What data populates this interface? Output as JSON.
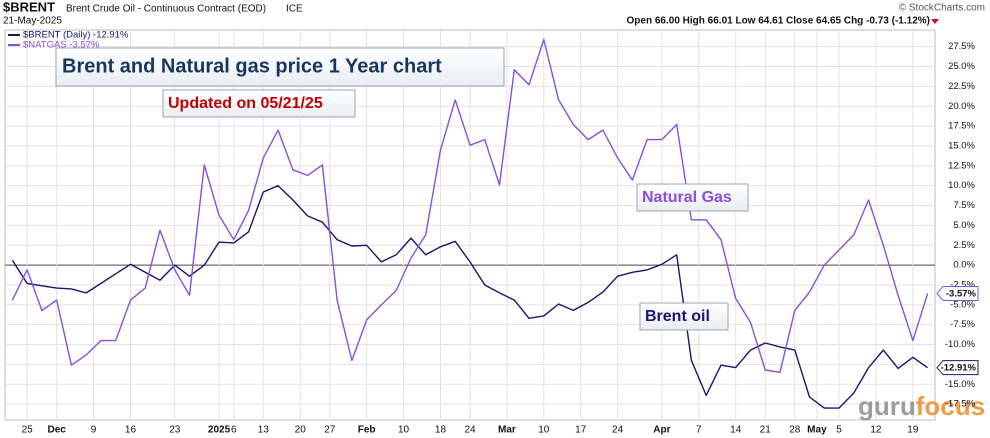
{
  "header": {
    "symbol": "$BRENT",
    "description": "Brent Crude Oil - Continuous Contract (EOD)",
    "exchange": "ICE",
    "date": "21-May-2025",
    "quote": "Open 66.00  High 66.01  Low 64.61  Close 64.65  Chg -0.73 (-1.12%)",
    "credit": "© StockCharts.com"
  },
  "logo": "gurufocus",
  "chart_data": {
    "type": "line",
    "annotations": {
      "title": "Brent and Natural gas price 1 Year chart",
      "updated": "Updated on 05/21/25",
      "gas": "Natural Gas",
      "oil": "Brent oil"
    },
    "x": [
      1,
      3,
      5,
      7,
      9,
      11,
      13,
      15,
      17,
      19,
      21,
      23,
      25,
      27,
      29,
      31,
      33,
      35,
      37,
      39,
      41,
      43,
      45,
      47,
      49,
      51,
      53,
      55,
      57,
      59,
      61,
      63,
      65,
      67,
      69,
      71,
      73,
      75,
      77,
      79,
      81,
      83,
      85,
      87,
      89,
      91,
      93,
      95,
      97,
      99,
      101,
      103,
      105,
      107,
      109,
      111,
      113,
      115,
      117,
      119,
      121,
      123,
      125
    ],
    "xlim": [
      0,
      126
    ],
    "xticks": [
      {
        "value": 3,
        "label": "25"
      },
      {
        "value": 7,
        "label": "Dec"
      },
      {
        "value": 12,
        "label": "9"
      },
      {
        "value": 17,
        "label": "16"
      },
      {
        "value": 23,
        "label": "23"
      },
      {
        "value": 29,
        "label": "2025"
      },
      {
        "value": 31,
        "label": "6"
      },
      {
        "value": 35,
        "label": "13"
      },
      {
        "value": 40,
        "label": "20"
      },
      {
        "value": 44,
        "label": "27"
      },
      {
        "value": 49,
        "label": "Feb"
      },
      {
        "value": 54,
        "label": "10"
      },
      {
        "value": 59,
        "label": "18"
      },
      {
        "value": 63,
        "label": "24"
      },
      {
        "value": 68,
        "label": "Mar"
      },
      {
        "value": 73,
        "label": "10"
      },
      {
        "value": 78,
        "label": "17"
      },
      {
        "value": 83,
        "label": "24"
      },
      {
        "value": 89,
        "label": "Apr"
      },
      {
        "value": 94,
        "label": "7"
      },
      {
        "value": 99,
        "label": "14"
      },
      {
        "value": 103,
        "label": "21"
      },
      {
        "value": 107,
        "label": "28"
      },
      {
        "value": 110,
        "label": "May"
      },
      {
        "value": 113,
        "label": "5"
      },
      {
        "value": 118,
        "label": "12"
      },
      {
        "value": 123,
        "label": "19"
      }
    ],
    "ylim": [
      -19.5,
      29.6
    ],
    "yticks": [
      {
        "value": 27.5,
        "label": "27.5%"
      },
      {
        "value": 25,
        "label": "25.0%"
      },
      {
        "value": 22.5,
        "label": "22.5%"
      },
      {
        "value": 20,
        "label": "20.0%"
      },
      {
        "value": 17.5,
        "label": "17.5%"
      },
      {
        "value": 15,
        "label": "15.0%"
      },
      {
        "value": 12.5,
        "label": "12.5%"
      },
      {
        "value": 10,
        "label": "10.0%"
      },
      {
        "value": 7.5,
        "label": "7.5%"
      },
      {
        "value": 5,
        "label": "5.0%"
      },
      {
        "value": 2.5,
        "label": "2.5%"
      },
      {
        "value": 0,
        "label": "0.0%"
      },
      {
        "value": -2.5,
        "label": "-2.5%"
      },
      {
        "value": -5,
        "label": "-5.0%"
      },
      {
        "value": -7.5,
        "label": "-7.5%"
      },
      {
        "value": -10,
        "label": "-10.0%"
      },
      {
        "value": -12.5,
        "label": "-12.5%"
      },
      {
        "value": -15,
        "label": "-15.0%"
      },
      {
        "value": -17.5,
        "label": "-17.5%"
      }
    ],
    "grid": true,
    "series": [
      {
        "name": "$BRENT (Daily) -12.91%",
        "color": "#16166b",
        "last_label": "-12.91%",
        "values": [
          0.6,
          -2.3,
          -2.6,
          -2.9,
          -3.0,
          -3.5,
          -2.3,
          -1.1,
          0.1,
          -0.9,
          -1.9,
          0.0,
          -1.4,
          0.0,
          2.9,
          2.8,
          4.2,
          9.2,
          10.0,
          8.2,
          6.2,
          5.4,
          3.2,
          2.4,
          2.5,
          0.4,
          1.3,
          3.4,
          1.3,
          2.3,
          3.0,
          0.4,
          -2.5,
          -3.5,
          -4.4,
          -6.7,
          -6.4,
          -4.9,
          -5.7,
          -4.7,
          -3.4,
          -1.4,
          -0.9,
          -0.6,
          0.1,
          1.3,
          -12.0,
          -16.4,
          -12.6,
          -12.9,
          -10.7,
          -9.8,
          -10.3,
          -10.7,
          -16.6,
          -18.0,
          -18.0,
          -16.1,
          -12.9,
          -10.7,
          -13.0,
          -11.6,
          -12.91
        ]
      },
      {
        "name": "$NATGAS -3.57%",
        "color": "#8a4fd8",
        "last_label": "-3.57%",
        "values": [
          -4.4,
          -0.6,
          -5.7,
          -4.4,
          -12.6,
          -11.3,
          -9.5,
          -9.5,
          -4.4,
          -2.9,
          4.4,
          -0.6,
          -3.8,
          12.6,
          6.3,
          3.2,
          6.9,
          13.5,
          17.0,
          12.0,
          11.3,
          12.6,
          -4.4,
          -12.0,
          -6.9,
          -5.0,
          -3.2,
          0.9,
          3.8,
          14.5,
          20.8,
          15.1,
          15.8,
          10.1,
          24.6,
          22.7,
          28.4,
          20.8,
          17.7,
          15.8,
          17.0,
          13.5,
          10.7,
          15.8,
          15.8,
          17.7,
          5.7,
          5.7,
          3.2,
          -4.2,
          -7.2,
          -13.2,
          -13.5,
          -5.7,
          -3.4,
          0.0,
          1.9,
          3.8,
          8.2,
          2.5,
          -3.8,
          -9.5,
          -3.57
        ]
      }
    ]
  }
}
